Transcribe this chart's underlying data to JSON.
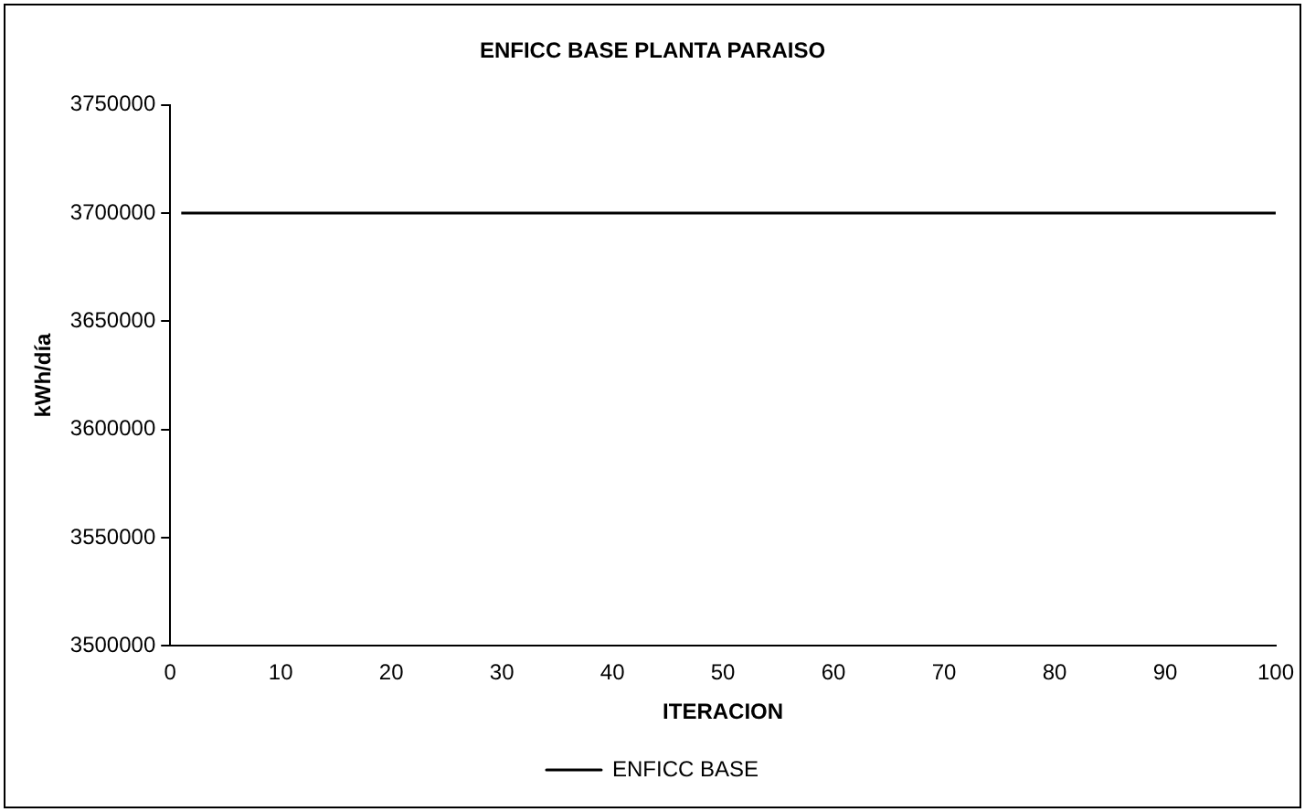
{
  "chart_data": {
    "type": "line",
    "title": "ENFICC BASE PLANTA PARAISO",
    "xlabel": "ITERACION",
    "ylabel": "kWh/día",
    "x": [
      1,
      100
    ],
    "series": [
      {
        "name": "ENFICC BASE",
        "color": "#000000",
        "values": [
          3700000,
          3700000
        ]
      }
    ],
    "xlim": [
      0,
      100
    ],
    "xticks": [
      0,
      10,
      20,
      30,
      40,
      50,
      60,
      70,
      80,
      90,
      100
    ],
    "ylim": [
      3500000,
      3750000
    ],
    "yticks": [
      3500000,
      3550000,
      3600000,
      3650000,
      3700000,
      3750000
    ],
    "grid": false,
    "legend": "bottom",
    "marker": "none",
    "line_style": "solid"
  }
}
